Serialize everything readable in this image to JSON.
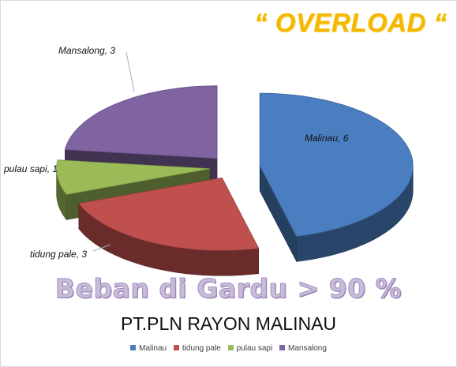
{
  "chart_data": {
    "type": "pie",
    "title": "“ OVERLOAD “",
    "subtitle": "Beban di Gardu > 90 %",
    "caption": "PT.PLN RAYON MALINAU",
    "categories": [
      "Malinau",
      "tidung pale",
      "pulau sapi",
      "Mansalong"
    ],
    "values": [
      6,
      3,
      1,
      3
    ],
    "data_labels": [
      "Malinau, 6",
      "tidung pale, 3",
      "pulau sapi, 1",
      "Mansalong, 3"
    ],
    "legend_position": "bottom",
    "three_d": true,
    "exploded": true,
    "colors": [
      "#4a7ec0",
      "#c0504d",
      "#9bbb59",
      "#8064a2"
    ]
  }
}
